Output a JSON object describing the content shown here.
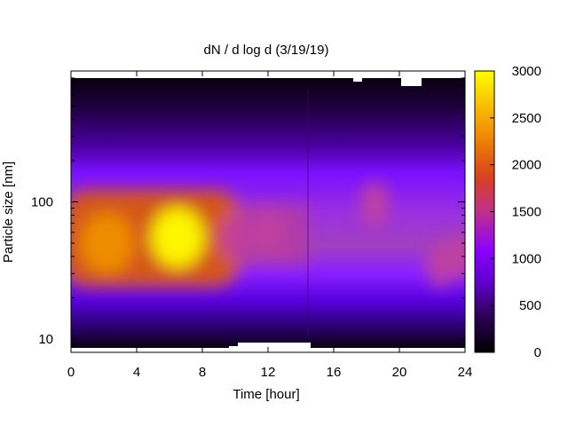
{
  "chart_data": {
    "type": "heatmap",
    "title": "dN / d log d (3/19/19)",
    "xlabel": "Time [hour]",
    "ylabel": "Particle size [nm]",
    "x_range": [
      0,
      24
    ],
    "x_ticks": [
      0,
      4,
      8,
      12,
      16,
      20,
      24
    ],
    "y_scale": "log",
    "y_range": [
      8,
      900
    ],
    "y_ticks": [
      10,
      100
    ],
    "colorbar": {
      "range": [
        0,
        3000
      ],
      "ticks": [
        0,
        500,
        1000,
        1500,
        2000,
        2500,
        3000
      ],
      "palette": [
        "#000000",
        "#3a0070",
        "#8000ff",
        "#c040a0",
        "#e05000",
        "#f09000",
        "#ffff00"
      ]
    },
    "features": [
      {
        "time": 2.2,
        "size_nm": 50,
        "value": 2500
      },
      {
        "time": 6.5,
        "size_nm": 55,
        "value": 2900
      },
      {
        "time": 10.0,
        "size_nm": 55,
        "value": 1500
      },
      {
        "time": 12.0,
        "size_nm": 60,
        "value": 1300
      },
      {
        "time": 18.5,
        "size_nm": 95,
        "value": 1600
      },
      {
        "time": 22.5,
        "size_nm": 35,
        "value": 1400
      },
      {
        "time": 23.8,
        "size_nm": 40,
        "value": 1500
      }
    ],
    "grid": false
  }
}
